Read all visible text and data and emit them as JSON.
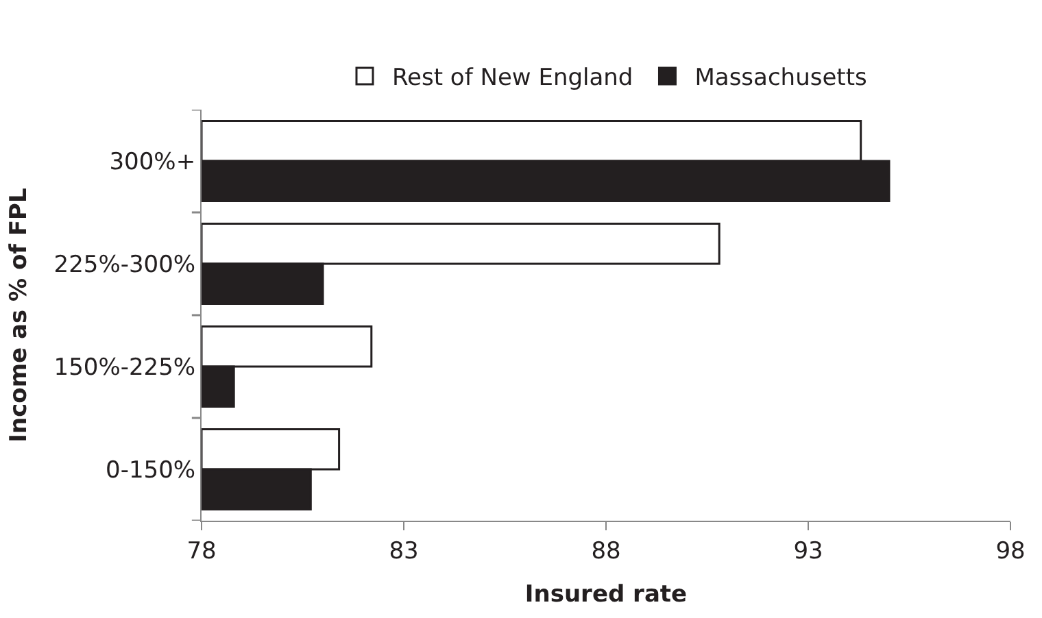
{
  "chart_data": {
    "type": "bar",
    "orientation": "horizontal",
    "xlabel": "Insured rate",
    "ylabel": "Income as % of FPL",
    "categories": [
      "300%+",
      "225%-300%",
      "150%-225%",
      "0-150%"
    ],
    "series": [
      {
        "name": "Rest of New England",
        "color": "#ffffff",
        "values": [
          94.3,
          90.8,
          82.2,
          81.4
        ]
      },
      {
        "name": "Massachusetts",
        "color": "#231f20",
        "values": [
          95.0,
          81.0,
          78.8,
          80.7
        ]
      }
    ],
    "xlim": [
      78,
      98
    ],
    "xticks": [
      78,
      83,
      88,
      93,
      98
    ],
    "legend": "top"
  }
}
